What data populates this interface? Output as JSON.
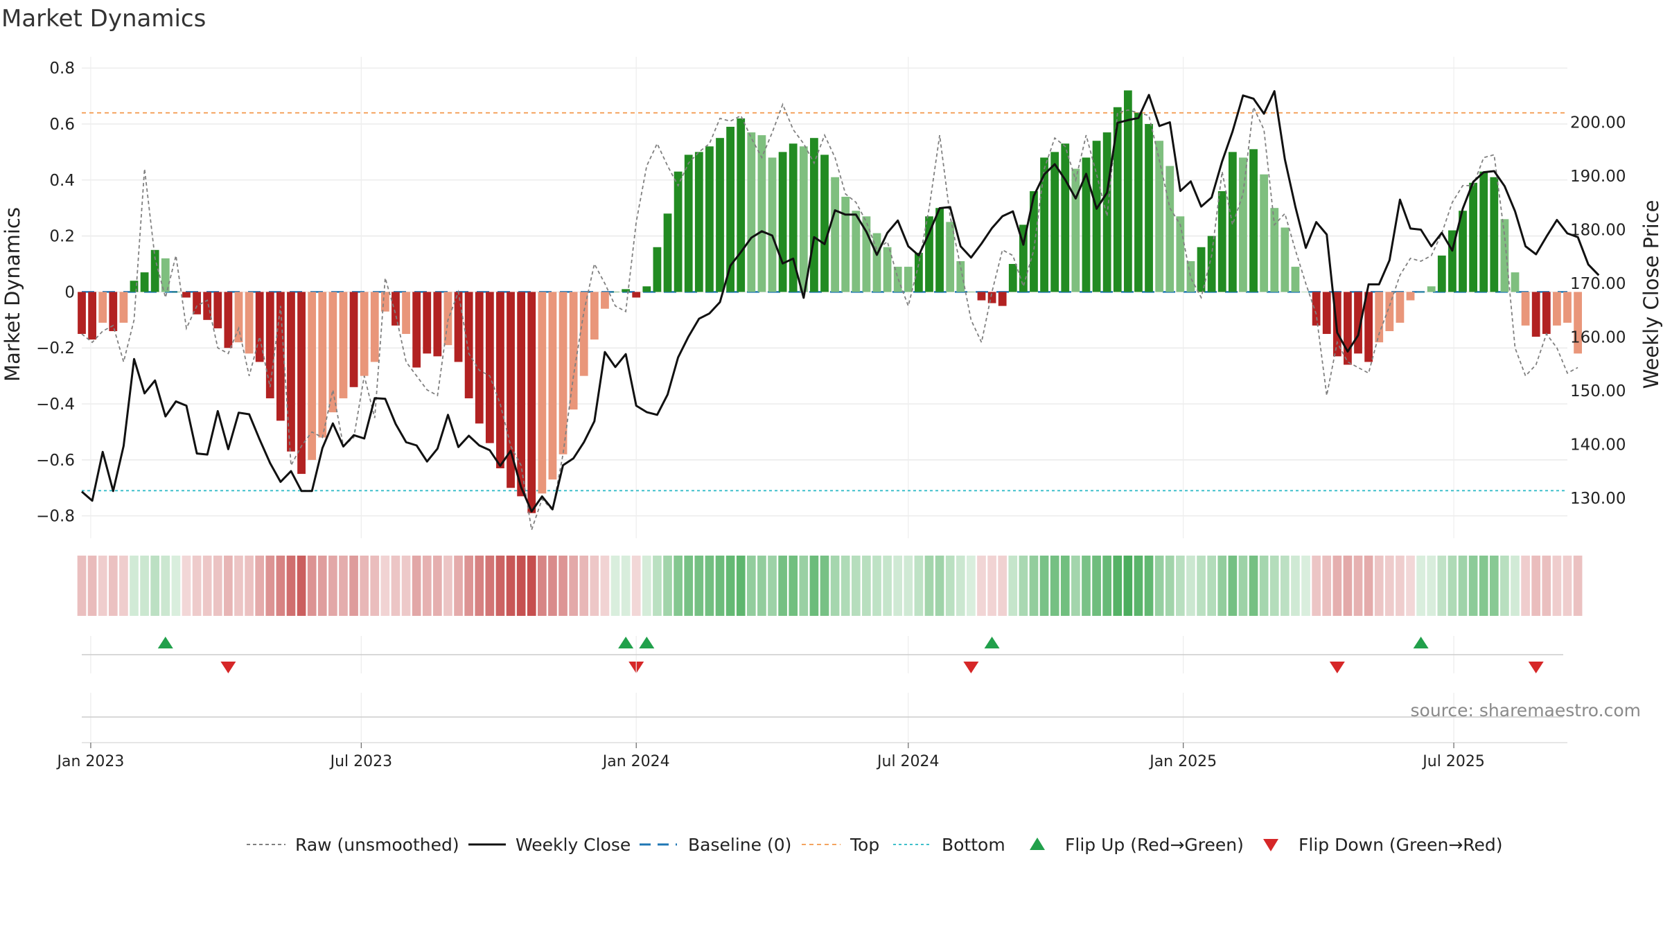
{
  "title": "Market Dynamics",
  "source_text": "source: sharemaestro.com",
  "chart_data": {
    "type": "bar",
    "title": "Market Dynamics",
    "ylabel": "Market Dynamics",
    "y2label": "Weekly Close Price",
    "ylim": [
      -0.88,
      0.84
    ],
    "y2lim": [
      122.5,
      212.2
    ],
    "yticks": [
      0.8,
      0.6,
      0.4,
      0.2,
      0,
      -0.2,
      -0.4,
      -0.6,
      -0.8
    ],
    "ytick_labels": [
      "0.8",
      "0.6",
      "0.4",
      "0.2",
      "0",
      "−0.2",
      "−0.4",
      "−0.6",
      "−0.8"
    ],
    "y2ticks": [
      200,
      190,
      180,
      170,
      160,
      150,
      140,
      130
    ],
    "y2tick_labels": [
      "200.00",
      "190.00",
      "180.00",
      "170.00",
      "160.00",
      "150.00",
      "140.00",
      "130.00"
    ],
    "x_start": "2022-12-26",
    "x_end": "2025-09-15",
    "week_start": "2022-12-26",
    "weeks": 144,
    "xticks": [
      "2023-01-01",
      "2023-07-01",
      "2024-01-01",
      "2024-07-01",
      "2025-01-01",
      "2025-07-01"
    ],
    "xtick_labels": [
      "Jan 2023",
      "Jul 2023",
      "Jan 2024",
      "Jul 2024",
      "Jan 2025",
      "Jul 2025"
    ],
    "top_level": 0.64,
    "bottom_level": -0.71,
    "baseline": 0,
    "grid": true,
    "legend_position": "bottom-center",
    "colors": {
      "strong_green": "#228b22",
      "weak_green": "#7fbf7f",
      "strong_red": "#b22222",
      "weak_red": "#e9967a",
      "raw": "#808080",
      "close": "#111111",
      "baseline": "#1f77b4",
      "top": "#f4a460",
      "bottom": "#40c0cb",
      "flip_up": "#21a04b",
      "flip_down": "#d62728"
    },
    "series": [
      {
        "name": "Market Dynamics",
        "values": [
          -0.15,
          -0.17,
          -0.11,
          -0.14,
          -0.11,
          0.04,
          0.07,
          0.15,
          0.12,
          0,
          -0.02,
          -0.08,
          -0.1,
          -0.13,
          -0.2,
          -0.18,
          -0.22,
          -0.25,
          -0.38,
          -0.46,
          -0.57,
          -0.65,
          -0.6,
          -0.52,
          -0.43,
          -0.38,
          -0.34,
          -0.3,
          -0.25,
          -0.07,
          -0.12,
          -0.15,
          -0.27,
          -0.22,
          -0.23,
          -0.19,
          -0.25,
          -0.38,
          -0.47,
          -0.54,
          -0.63,
          -0.7,
          -0.73,
          -0.79,
          -0.72,
          -0.67,
          -0.58,
          -0.42,
          -0.3,
          -0.17,
          -0.06,
          0,
          0.01,
          -0.02,
          0.02,
          0.16,
          0.28,
          0.43,
          0.49,
          0.5,
          0.52,
          0.55,
          0.59,
          0.62,
          0.57,
          0.56,
          0.48,
          0.5,
          0.53,
          0.52,
          0.55,
          0.49,
          0.41,
          0.34,
          0.29,
          0.27,
          0.21,
          0.16,
          0.09,
          0.09,
          0.14,
          0.27,
          0.3,
          0.25,
          0.11,
          0,
          -0.03,
          -0.04,
          -0.05,
          0.1,
          0.24,
          0.36,
          0.48,
          0.5,
          0.53,
          0.44,
          0.48,
          0.54,
          0.57,
          0.66,
          0.72,
          0.64,
          0.6,
          0.54,
          0.45,
          0.27,
          0.11,
          0.16,
          0.2,
          0.36,
          0.5,
          0.48,
          0.51,
          0.42,
          0.3,
          0.23,
          0.09,
          0,
          -0.12,
          -0.15,
          -0.23,
          -0.26,
          -0.22,
          -0.25,
          -0.18,
          -0.14,
          -0.11,
          -0.03,
          0,
          0.02,
          0.13,
          0.22,
          0.29,
          0.39,
          0.43,
          0.41,
          0.26,
          0.07,
          -0.12,
          -0.16,
          -0.15,
          -0.12,
          -0.11,
          -0.22
        ],
        "flags": [
          1,
          1,
          0,
          1,
          0,
          1,
          1,
          1,
          0,
          1,
          1,
          1,
          1,
          1,
          1,
          0,
          0,
          1,
          1,
          1,
          1,
          1,
          0,
          0,
          0,
          0,
          1,
          0,
          0,
          0,
          1,
          0,
          1,
          1,
          1,
          0,
          1,
          1,
          1,
          1,
          1,
          1,
          1,
          1,
          0,
          0,
          0,
          0,
          0,
          0,
          0,
          1,
          1,
          1,
          1,
          1,
          1,
          1,
          1,
          1,
          1,
          1,
          1,
          1,
          0,
          0,
          0,
          1,
          1,
          0,
          1,
          1,
          0,
          0,
          0,
          0,
          0,
          0,
          0,
          0,
          1,
          1,
          1,
          0,
          0,
          1,
          1,
          1,
          1,
          1,
          1,
          1,
          1,
          1,
          1,
          0,
          1,
          1,
          1,
          1,
          1,
          1,
          1,
          0,
          0,
          0,
          0,
          1,
          1,
          1,
          1,
          0,
          1,
          0,
          0,
          0,
          0,
          0,
          1,
          1,
          1,
          1,
          1,
          1,
          0,
          0,
          0,
          0,
          0,
          0,
          1,
          1,
          1,
          1,
          1,
          1,
          0,
          0,
          0,
          1,
          1,
          0,
          0,
          0,
          1
        ]
      },
      {
        "name": "Raw (unsmoothed)",
        "values": [
          -0.15,
          -0.18,
          -0.14,
          -0.12,
          -0.25,
          -0.1,
          0.44,
          0.12,
          -0.02,
          0.13,
          -0.13,
          -0.05,
          -0.03,
          -0.2,
          -0.22,
          -0.13,
          -0.3,
          -0.16,
          -0.34,
          -0.05,
          -0.62,
          -0.55,
          -0.5,
          -0.52,
          -0.35,
          -0.55,
          -0.52,
          -0.3,
          -0.45,
          0.05,
          -0.08,
          -0.25,
          -0.3,
          -0.35,
          -0.37,
          -0.1,
          0,
          -0.22,
          -0.28,
          -0.3,
          -0.4,
          -0.55,
          -0.62,
          -0.85,
          -0.74,
          -0.78,
          -0.58,
          -0.3,
          -0.07,
          0.1,
          0.03,
          -0.05,
          -0.07,
          0.25,
          0.45,
          0.53,
          0.45,
          0.38,
          0.46,
          0.5,
          0.53,
          0.62,
          0.61,
          0.63,
          0.55,
          0.48,
          0.57,
          0.67,
          0.58,
          0.53,
          0.46,
          0.56,
          0.48,
          0.35,
          0.32,
          0.25,
          0.15,
          0.18,
          0.05,
          -0.05,
          0.1,
          0.3,
          0.56,
          0.27,
          0.09,
          -0.1,
          -0.18,
          0,
          0.15,
          0.13,
          0.02,
          0.15,
          0.44,
          0.55,
          0.52,
          0.4,
          0.56,
          0.42,
          0.27,
          0.64,
          0.65,
          0.64,
          0.63,
          0.47,
          0.3,
          0.24,
          0.05,
          -0.02,
          0.13,
          0.43,
          0.24,
          0.35,
          0.66,
          0.58,
          0.24,
          0.28,
          0.15,
          0.03,
          -0.08,
          -0.37,
          -0.18,
          -0.25,
          -0.27,
          -0.29,
          -0.15,
          -0.05,
          0.06,
          0.12,
          0.11,
          0.13,
          0.21,
          0.32,
          0.38,
          0.38,
          0.48,
          0.49,
          0.2,
          -0.2,
          -0.3,
          -0.26,
          -0.15,
          -0.2,
          -0.29,
          -0.27
        ]
      },
      {
        "name": "Weekly Close",
        "values": [
          131.2,
          129.5,
          138.6,
          131.3,
          139.7,
          155.9,
          149.5,
          151.9,
          145.2,
          148,
          147.2,
          138.3,
          138.1,
          146.2,
          139.1,
          145.9,
          145.6,
          140.9,
          136.5,
          133,
          135,
          131.3,
          131.3,
          139.3,
          143.9,
          139.6,
          141.7,
          141.1,
          148.6,
          148.5,
          143.8,
          140.4,
          139.8,
          136.8,
          139.2,
          145.5,
          139.5,
          141.6,
          139.8,
          138.9,
          136,
          138.8,
          132,
          127.5,
          130.3,
          127.9,
          136.1,
          137.4,
          140.4,
          144.3,
          157.2,
          154.4,
          156.8,
          147.2,
          146,
          145.5,
          149.3,
          156.2,
          160.1,
          163.4,
          164.4,
          166.5,
          173.3,
          175.8,
          178.5,
          179.7,
          178.9,
          173.7,
          174.6,
          167.3,
          178.6,
          177.3,
          183.6,
          182.8,
          182.8,
          179.6,
          175.3,
          179.4,
          181.7,
          176.9,
          175.2,
          179.4,
          184,
          184.2,
          176.9,
          174.8,
          177.4,
          180.3,
          182.5,
          183.4,
          177.2,
          186.3,
          190.3,
          192.2,
          189.3,
          185.8,
          190.4,
          183.9,
          186.9,
          199.9,
          200.4,
          200.8,
          205.1,
          199.3,
          200,
          187.2,
          189,
          184.3,
          186,
          192.7,
          198.3,
          205,
          204.4,
          201.6,
          205.8,
          193.1,
          184.3,
          176.6,
          181.4,
          179.1,
          160.8,
          157.3,
          160.3,
          169.8,
          169.8,
          174.3,
          185.6,
          180.2,
          180,
          176.9,
          179.4,
          176.1,
          183.9,
          188.9,
          190.7,
          190.9,
          188.1,
          183.4,
          176.9,
          175.4,
          178.7,
          181.8,
          179.3,
          178.6,
          173.5,
          171.5
        ]
      }
    ],
    "flip_up": [
      "2023-02-20",
      "2023-12-25",
      "2024-01-08",
      "2024-08-26",
      "2025-06-09"
    ],
    "flip_down": [
      "2023-04-03",
      "2024-01-01",
      "2024-08-12",
      "2025-04-14",
      "2025-08-25"
    ],
    "legend": {
      "raw": "Raw (unsmoothed)",
      "close": "Weekly Close",
      "baseline": "Baseline (0)",
      "top": "Top",
      "bottom": "Bottom",
      "flip_up": "Flip Up (Red→Green)",
      "flip_down": "Flip Down (Green→Red)"
    }
  }
}
